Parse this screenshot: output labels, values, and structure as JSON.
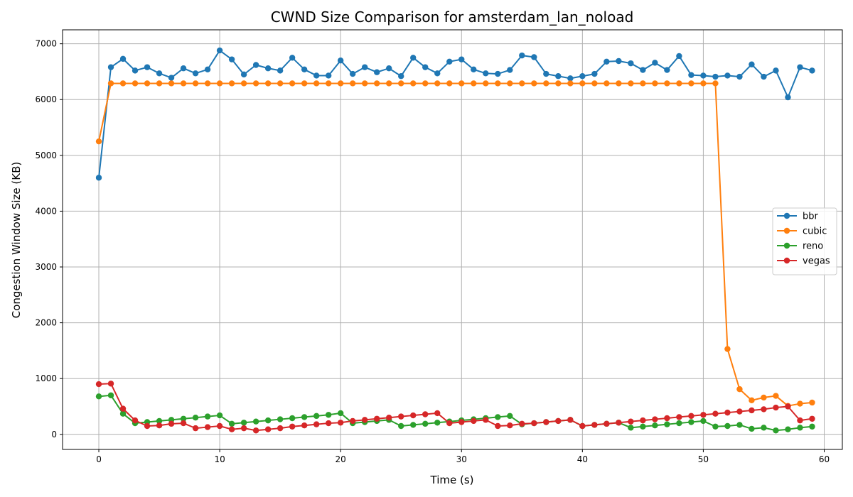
{
  "chart_data": {
    "type": "line",
    "title": "CWND Size Comparison for amsterdam_lan_noload",
    "xlabel": "Time (s)",
    "ylabel": "Congestion Window Size (KB)",
    "xlim": [
      -3,
      61.5
    ],
    "ylim": [
      -270,
      7250
    ],
    "xticks": [
      0,
      10,
      20,
      30,
      40,
      50,
      60
    ],
    "yticks": [
      0,
      1000,
      2000,
      3000,
      4000,
      5000,
      6000,
      7000
    ],
    "grid": true,
    "legend_position": "right",
    "x": [
      0,
      1,
      2,
      3,
      4,
      5,
      6,
      7,
      8,
      9,
      10,
      11,
      12,
      13,
      14,
      15,
      16,
      17,
      18,
      19,
      20,
      21,
      22,
      23,
      24,
      25,
      26,
      27,
      28,
      29,
      30,
      31,
      32,
      33,
      34,
      35,
      36,
      37,
      38,
      39,
      40,
      41,
      42,
      43,
      44,
      45,
      46,
      47,
      48,
      49,
      50,
      51,
      52,
      53,
      54,
      55,
      56,
      57,
      58,
      59
    ],
    "series": [
      {
        "name": "bbr",
        "color": "#1f77b4",
        "values": [
          4600,
          6580,
          6730,
          6520,
          6580,
          6470,
          6390,
          6560,
          6470,
          6540,
          6880,
          6720,
          6450,
          6620,
          6560,
          6520,
          6750,
          6540,
          6430,
          6430,
          6700,
          6460,
          6580,
          6490,
          6560,
          6420,
          6750,
          6580,
          6470,
          6680,
          6720,
          6540,
          6470,
          6460,
          6530,
          6790,
          6760,
          6460,
          6420,
          6380,
          6420,
          6460,
          6680,
          6690,
          6650,
          6530,
          6660,
          6530,
          6780,
          6440,
          6430,
          6410,
          6430,
          6410,
          6630,
          6410,
          6520,
          6040,
          6580,
          6520
        ]
      },
      {
        "name": "cubic",
        "color": "#ff7f0e",
        "values": [
          5250,
          6290,
          6290,
          6290,
          6290,
          6290,
          6290,
          6290,
          6290,
          6290,
          6290,
          6290,
          6290,
          6290,
          6290,
          6290,
          6290,
          6290,
          6290,
          6290,
          6290,
          6290,
          6290,
          6290,
          6290,
          6290,
          6290,
          6290,
          6290,
          6290,
          6290,
          6290,
          6290,
          6290,
          6290,
          6290,
          6290,
          6290,
          6290,
          6290,
          6290,
          6290,
          6290,
          6290,
          6290,
          6290,
          6290,
          6290,
          6290,
          6290,
          6290,
          6290,
          1530,
          810,
          610,
          660,
          690,
          510,
          550,
          570
        ]
      },
      {
        "name": "reno",
        "color": "#2ca02c",
        "values": [
          680,
          700,
          370,
          200,
          220,
          240,
          260,
          280,
          300,
          320,
          340,
          190,
          210,
          230,
          250,
          270,
          290,
          310,
          330,
          350,
          380,
          200,
          220,
          240,
          260,
          150,
          170,
          190,
          210,
          230,
          250,
          270,
          290,
          310,
          330,
          180,
          200,
          220,
          240,
          260,
          150,
          170,
          190,
          210,
          120,
          140,
          160,
          180,
          200,
          220,
          240,
          140,
          150,
          170,
          100,
          120,
          70,
          90,
          120,
          140
        ]
      },
      {
        "name": "vegas",
        "color": "#d62728",
        "values": [
          900,
          910,
          460,
          250,
          150,
          160,
          190,
          200,
          110,
          130,
          150,
          90,
          110,
          70,
          90,
          110,
          140,
          160,
          180,
          200,
          210,
          240,
          260,
          280,
          300,
          320,
          340,
          360,
          380,
          200,
          220,
          240,
          260,
          150,
          160,
          190,
          200,
          220,
          240,
          260,
          150,
          170,
          190,
          210,
          230,
          250,
          270,
          290,
          310,
          330,
          350,
          370,
          390,
          410,
          430,
          450,
          480,
          500,
          250,
          280
        ]
      }
    ]
  }
}
